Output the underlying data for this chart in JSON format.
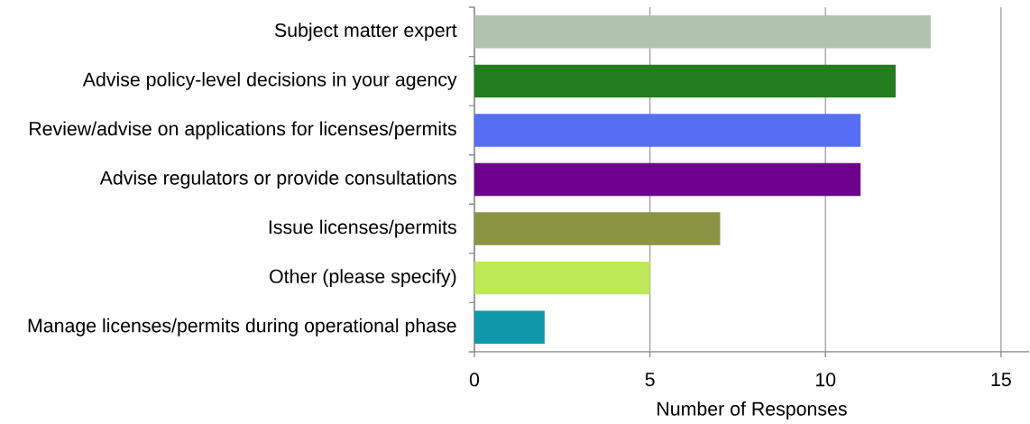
{
  "chart_data": {
    "type": "bar",
    "orientation": "horizontal",
    "xlabel": "Number of Responses",
    "categories": [
      "Subject matter expert",
      "Advise policy-level decisions in your agency",
      "Review/advise on applications for licenses/permits",
      "Advise regulators or provide consultations",
      "Issue licenses/permits",
      "Other (please specify)",
      "Manage licenses/permits during operational phase"
    ],
    "values": [
      13,
      12,
      11,
      11,
      7,
      5,
      2
    ],
    "colors": [
      "#b0c4ad",
      "#217d1e",
      "#566ff5",
      "#6e008e",
      "#8a9443",
      "#bde956",
      "#1097a9"
    ],
    "xlim": [
      0,
      15.8
    ],
    "xticks": [
      0,
      5,
      10,
      15
    ],
    "grid": "x"
  }
}
